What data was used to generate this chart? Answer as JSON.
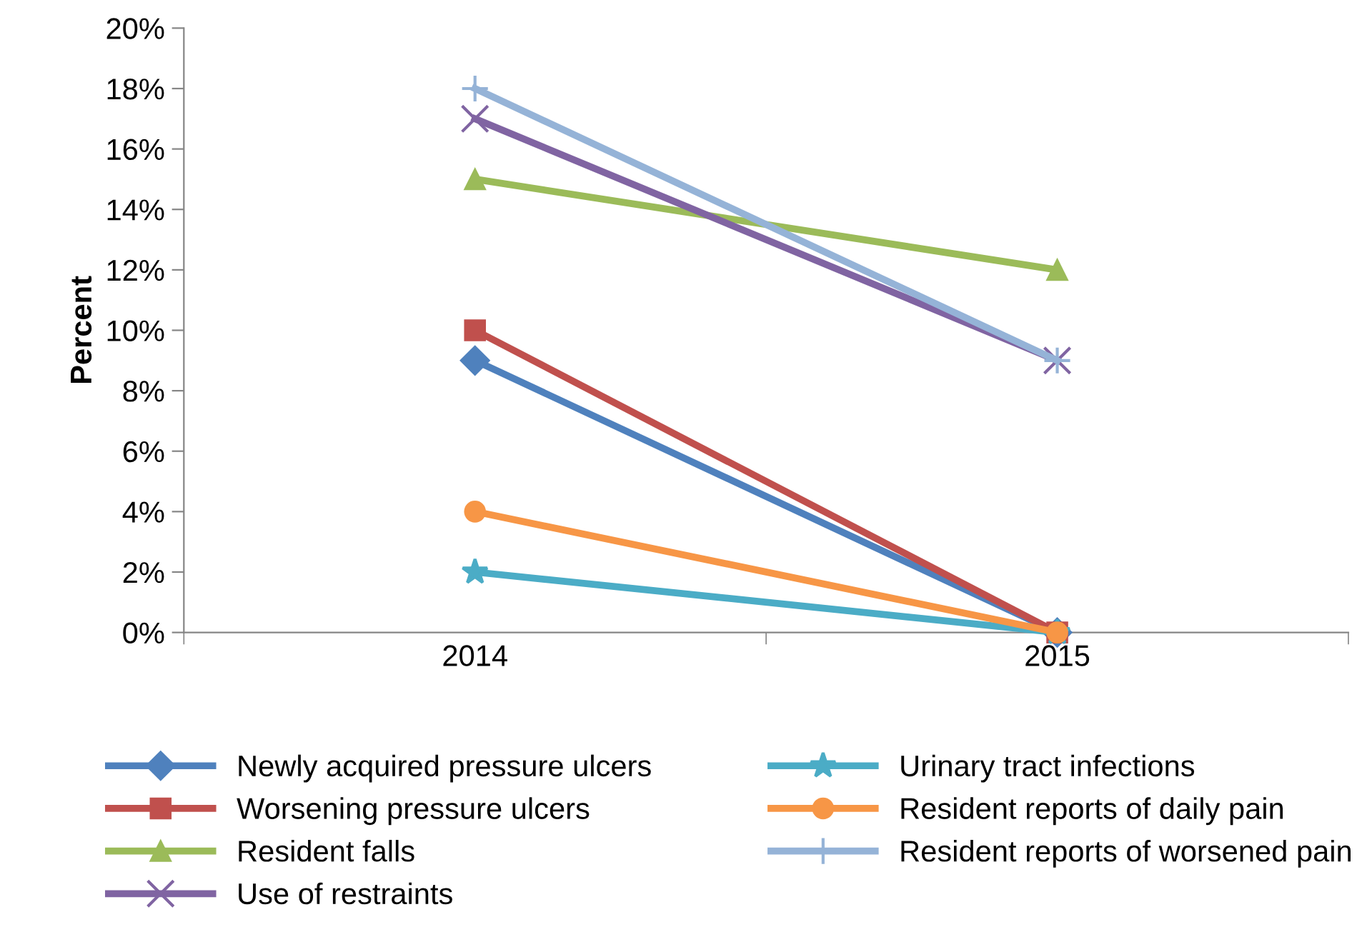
{
  "chart_data": {
    "type": "line",
    "ylabel": "Percent",
    "categories": [
      "2014",
      "2015"
    ],
    "series": [
      {
        "name": "Newly acquired pressure ulcers",
        "color": "#4f81bd",
        "marker": "diamond",
        "values": [
          9,
          0
        ]
      },
      {
        "name": "Worsening pressure ulcers",
        "color": "#c0504d",
        "marker": "square",
        "values": [
          10,
          0
        ]
      },
      {
        "name": "Resident falls",
        "color": "#9bbb59",
        "marker": "triangle",
        "values": [
          15,
          12
        ]
      },
      {
        "name": "Use of restraints",
        "color": "#8064a2",
        "marker": "cross",
        "values": [
          17,
          9
        ]
      },
      {
        "name": "Urinary tract infections",
        "color": "#4bacc6",
        "marker": "star",
        "values": [
          2,
          0
        ]
      },
      {
        "name": "Resident reports of daily pain",
        "color": "#f79646",
        "marker": "circle",
        "values": [
          4,
          0
        ]
      },
      {
        "name": "Resident reports of worsened pain",
        "color": "#95b3d7",
        "marker": "plus",
        "values": [
          18,
          9
        ]
      }
    ],
    "ylim": [
      0,
      20
    ],
    "yticks": [
      {
        "value": 0,
        "label": "0%"
      },
      {
        "value": 2,
        "label": "2%"
      },
      {
        "value": 4,
        "label": "4%"
      },
      {
        "value": 6,
        "label": "6%"
      },
      {
        "value": 8,
        "label": "8%"
      },
      {
        "value": 10,
        "label": "10%"
      },
      {
        "value": 12,
        "label": "12%"
      },
      {
        "value": 14,
        "label": "14%"
      },
      {
        "value": 16,
        "label": "16%"
      },
      {
        "value": 18,
        "label": "18%"
      },
      {
        "value": 20,
        "label": "20%"
      }
    ],
    "grid": false,
    "legend": "bottom",
    "line_style": "solid"
  }
}
